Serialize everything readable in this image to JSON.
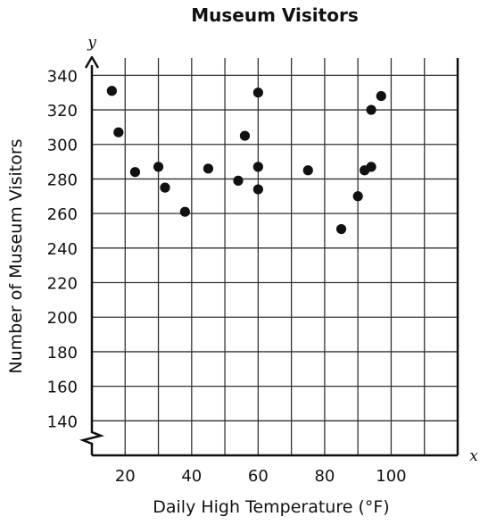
{
  "chart_data": {
    "type": "scatter",
    "title": "Museum Visitors",
    "xlabel": "Daily High Temperature (°F)",
    "ylabel": "Number of Museum Visitors",
    "x_axis_var": "x",
    "y_axis_var": "y",
    "xlim": [
      10,
      120
    ],
    "ylim": [
      120,
      350
    ],
    "y_axis_break": true,
    "grid": true,
    "x_ticks": [
      20,
      40,
      60,
      80,
      100
    ],
    "y_ticks": [
      140,
      160,
      180,
      200,
      220,
      240,
      260,
      280,
      300,
      320,
      340
    ],
    "points": [
      {
        "x": 16,
        "y": 331
      },
      {
        "x": 18,
        "y": 307
      },
      {
        "x": 23,
        "y": 284
      },
      {
        "x": 30,
        "y": 287
      },
      {
        "x": 32,
        "y": 275
      },
      {
        "x": 38,
        "y": 261
      },
      {
        "x": 45,
        "y": 286
      },
      {
        "x": 54,
        "y": 279
      },
      {
        "x": 56,
        "y": 305
      },
      {
        "x": 60,
        "y": 330
      },
      {
        "x": 60,
        "y": 287
      },
      {
        "x": 60,
        "y": 274
      },
      {
        "x": 75,
        "y": 285
      },
      {
        "x": 85,
        "y": 251
      },
      {
        "x": 90,
        "y": 270
      },
      {
        "x": 92,
        "y": 285
      },
      {
        "x": 94,
        "y": 320
      },
      {
        "x": 94,
        "y": 287
      },
      {
        "x": 97,
        "y": 328
      }
    ]
  }
}
